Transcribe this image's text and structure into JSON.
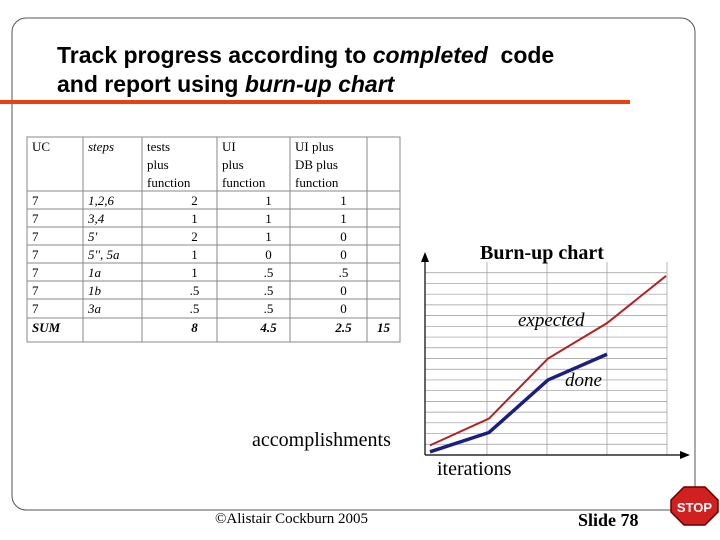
{
  "title": {
    "line1_a": "Track progress according to ",
    "line1_b": "completed",
    "line1_c": "  code",
    "line2_a": "and report using ",
    "line2_b": "burn-up chart"
  },
  "table": {
    "header": [
      [
        "UC"
      ],
      [
        "steps"
      ],
      [
        "tests",
        "plus",
        "function"
      ],
      [
        "UI",
        "plus",
        "function"
      ],
      [
        "UI plus",
        "DB plus",
        "function"
      ],
      null
    ],
    "rows": [
      [
        "7",
        "1,2,6",
        "2",
        "1",
        "1",
        null
      ],
      [
        "7",
        "3,4",
        "1",
        "1",
        "1",
        null
      ],
      [
        "7",
        "5'",
        "2",
        "1",
        "0",
        null
      ],
      [
        "7",
        "5'', 5a",
        "1",
        "0",
        "0",
        null
      ],
      [
        "7",
        "1a",
        "1",
        ".5",
        ".5",
        null
      ],
      [
        "7",
        "1b",
        ".5",
        ".5",
        "0",
        null
      ],
      [
        "7",
        "3a",
        ".5",
        ".5",
        "0",
        null
      ],
      [
        "SUM",
        null,
        "8",
        "4.5",
        "2.5",
        "15"
      ]
    ]
  },
  "chart_data": {
    "type": "line",
    "title": "Burn-up chart",
    "x_label": "iterations",
    "y_label": "accomplishments",
    "categories": [
      null,
      null,
      null,
      null,
      null
    ],
    "series": [
      {
        "name": "expected",
        "color": "#b22222",
        "values": [
          0.9,
          3.4,
          9,
          12.3,
          16.7
        ]
      },
      {
        "name": "done",
        "color": "#1a1f80",
        "values": [
          0.3,
          2.1,
          7,
          9.4,
          null
        ]
      }
    ],
    "ylim": [
      0,
      18
    ],
    "grid": true
  },
  "footer": {
    "copyright": "©Alistair Cockburn 2005",
    "slide": "Slide 78",
    "stop": "STOP"
  }
}
